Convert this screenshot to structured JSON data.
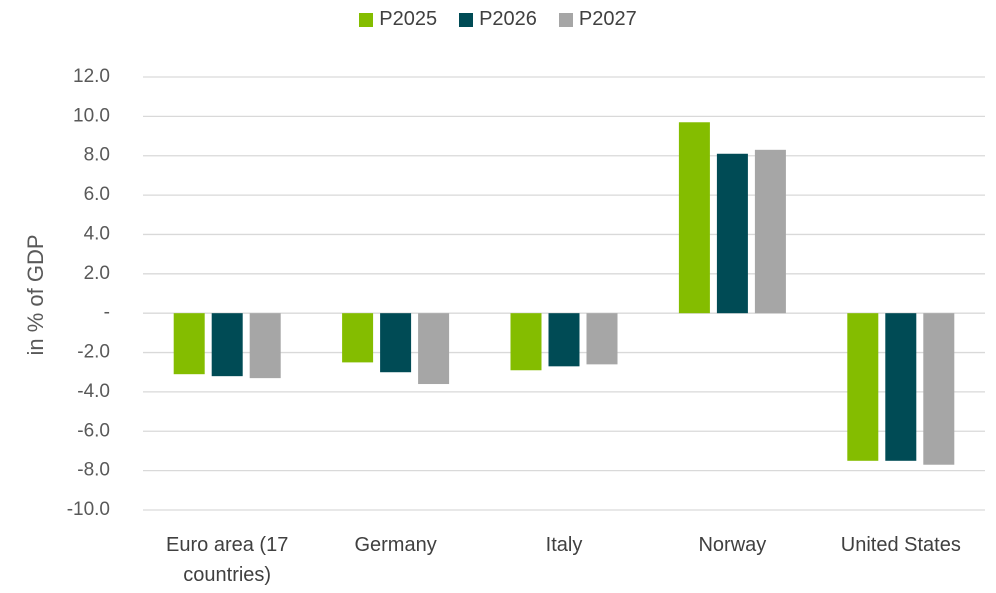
{
  "chart_data": {
    "type": "bar",
    "ylabel": "in % of GDP",
    "categories": [
      "Euro area (17 countries)",
      "Germany",
      "Italy",
      "Norway",
      "United States"
    ],
    "series": [
      {
        "name": "P2025",
        "color": "#84bd00",
        "values": [
          -3.1,
          -2.5,
          -2.9,
          9.7,
          -7.5
        ]
      },
      {
        "name": "P2026",
        "color": "#004b55",
        "values": [
          -3.2,
          -3.0,
          -2.7,
          8.1,
          -7.5
        ]
      },
      {
        "name": "P2027",
        "color": "#a6a6a6",
        "values": [
          -3.3,
          -3.6,
          -2.6,
          8.3,
          -7.7
        ]
      }
    ],
    "ylim": [
      -10,
      12
    ],
    "yticks": [
      {
        "value": 12,
        "label": "12.0"
      },
      {
        "value": 10,
        "label": "10.0"
      },
      {
        "value": 8,
        "label": "8.0"
      },
      {
        "value": 6,
        "label": "6.0"
      },
      {
        "value": 4,
        "label": "4.0"
      },
      {
        "value": 2,
        "label": "2.0"
      },
      {
        "value": 0,
        "label": "-"
      },
      {
        "value": -2,
        "label": "-2.0"
      },
      {
        "value": -4,
        "label": "-4.0"
      },
      {
        "value": -6,
        "label": "-6.0"
      },
      {
        "value": -8,
        "label": "-8.0"
      },
      {
        "value": -10,
        "label": "-10.0"
      }
    ],
    "grid": true,
    "legend": "top"
  }
}
